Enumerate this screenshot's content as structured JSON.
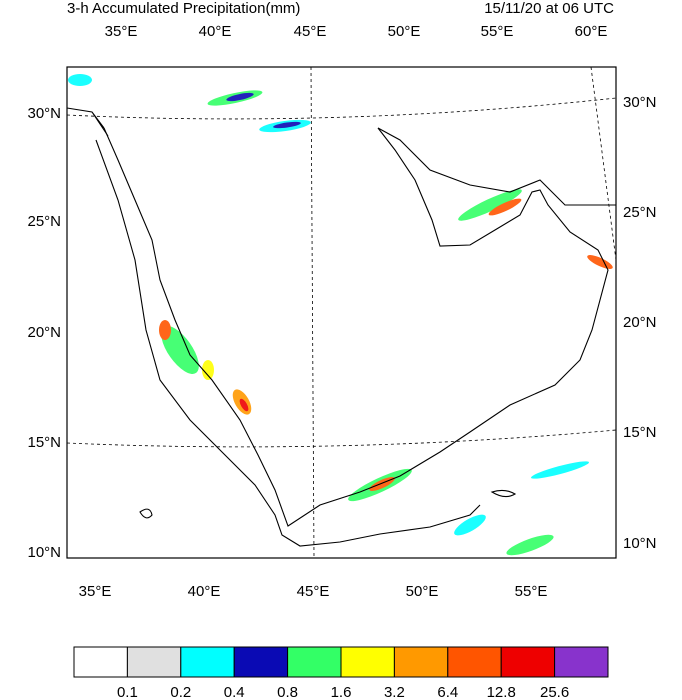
{
  "header": {
    "title": "3-h Accumulated Precipitation(mm)",
    "valid_time": "15/11/20 at 06 UTC"
  },
  "map": {
    "top_lon_labels": [
      "35°E",
      "40°E",
      "45°E",
      "50°E",
      "55°E",
      "60°E"
    ],
    "bottom_lon_labels": [
      "35°E",
      "40°E",
      "45°E",
      "50°E",
      "55°E"
    ],
    "left_lat_labels": [
      "30°N",
      "25°N",
      "20°N",
      "15°N",
      "10°N"
    ],
    "right_lat_labels": [
      "30°N",
      "25°N",
      "20°N",
      "15°N",
      "10°N"
    ]
  },
  "colorbar": {
    "colors": [
      "#ffffff",
      "#e0e0e0",
      "#00ffff",
      "#0a0ab4",
      "#33ff66",
      "#ffff00",
      "#ff9900",
      "#ff5500",
      "#ee0000",
      "#8833cc"
    ],
    "labels": [
      "0.1",
      "0.2",
      "0.4",
      "0.8",
      "1.6",
      "3.2",
      "6.4",
      "12.8",
      "25.6"
    ]
  }
}
